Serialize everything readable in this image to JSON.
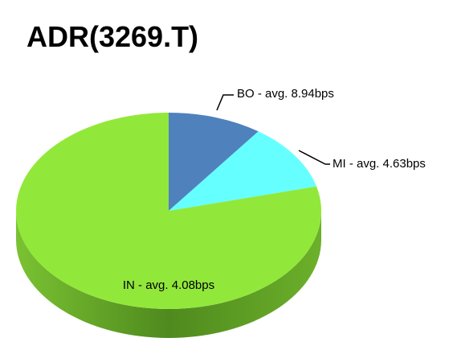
{
  "chart_data": {
    "type": "pie",
    "title": "ADR(3269.T)",
    "categories": [
      "BO - avg. 8.94bps",
      "MI - avg. 4.63bps",
      "IN - avg. 4.08bps"
    ],
    "values": [
      10,
      11,
      79
    ],
    "colors": [
      "#4f81bd",
      "#66ffff",
      "#92e83a"
    ]
  }
}
